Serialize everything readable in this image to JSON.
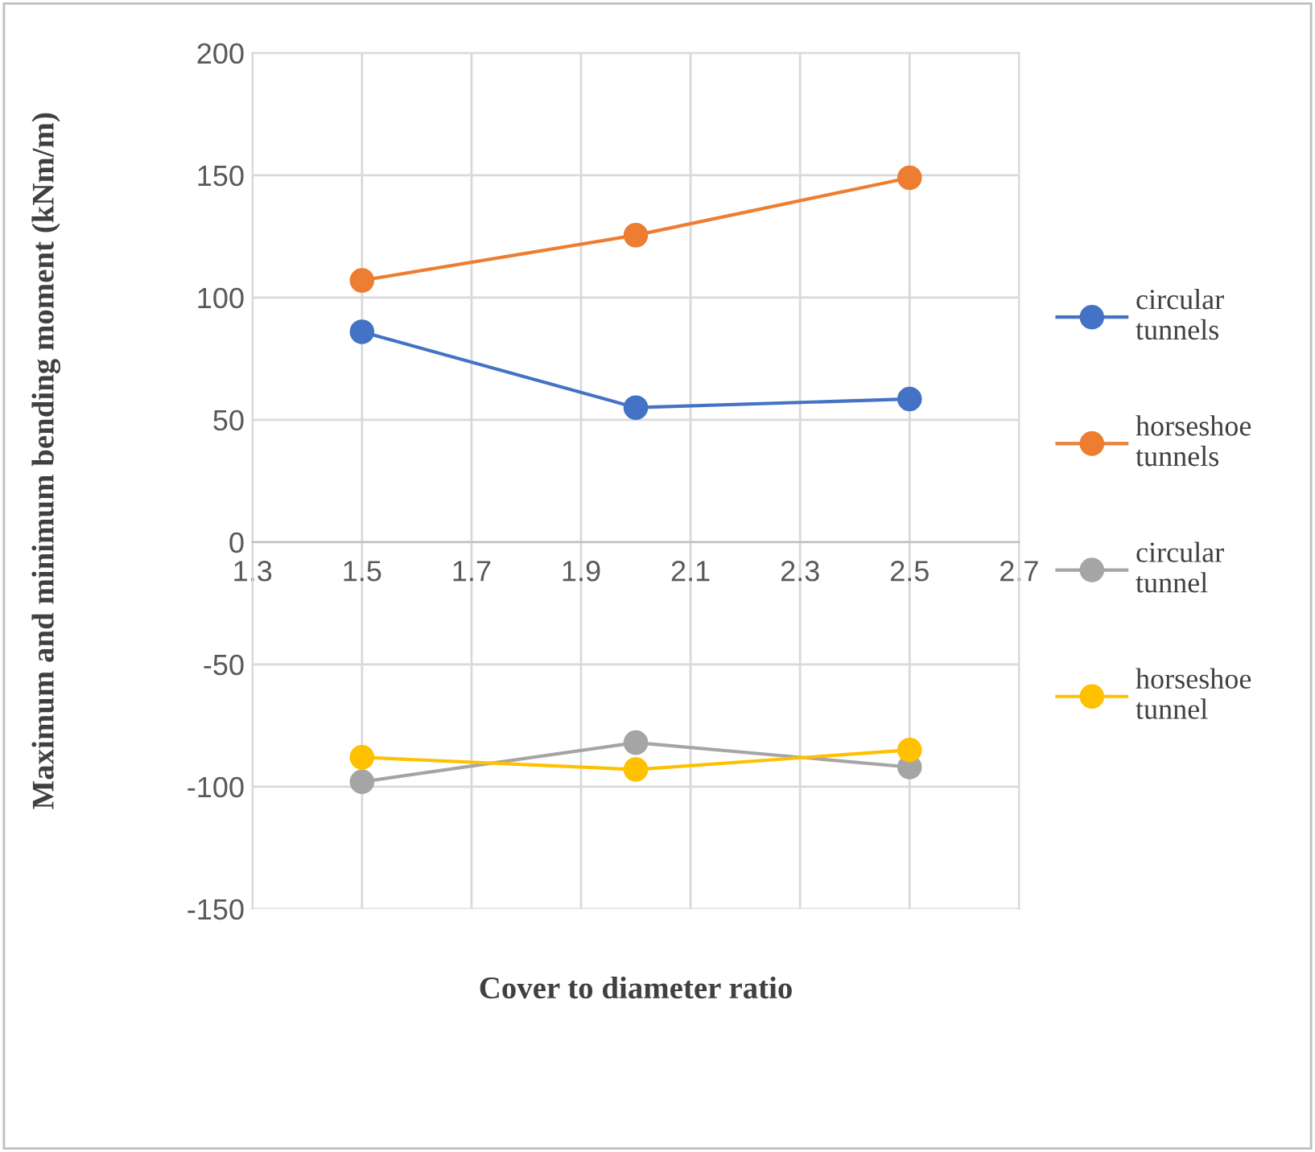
{
  "chart_data": {
    "type": "line",
    "xlabel": "Cover to diameter ratio",
    "ylabel": "Maximum and minimum bending moment (kNm/m)",
    "x": [
      1.5,
      2.0,
      2.5
    ],
    "series": [
      {
        "name": "circular tunnels",
        "color": "#4472c4",
        "values": [
          86,
          55,
          58.5
        ]
      },
      {
        "name": "horseshoe tunnels",
        "color": "#ed7d31",
        "values": [
          107,
          125.5,
          149
        ]
      },
      {
        "name": "circular tunnel",
        "color": "#a5a5a5",
        "values": [
          -98,
          -82,
          -92
        ]
      },
      {
        "name": "horseshoe tunnel",
        "color": "#ffc000",
        "values": [
          -88,
          -93,
          -85
        ]
      }
    ],
    "xlim": [
      1.3,
      2.7
    ],
    "xticks": [
      1.3,
      1.5,
      1.7,
      1.9,
      2.1,
      2.3,
      2.5,
      2.7
    ],
    "ylim": [
      -150,
      200
    ],
    "yticks": [
      -150,
      -100,
      -50,
      0,
      50,
      100,
      150,
      200
    ],
    "grid": true,
    "legend": "right",
    "marker": "circle",
    "line_style": "solid"
  }
}
